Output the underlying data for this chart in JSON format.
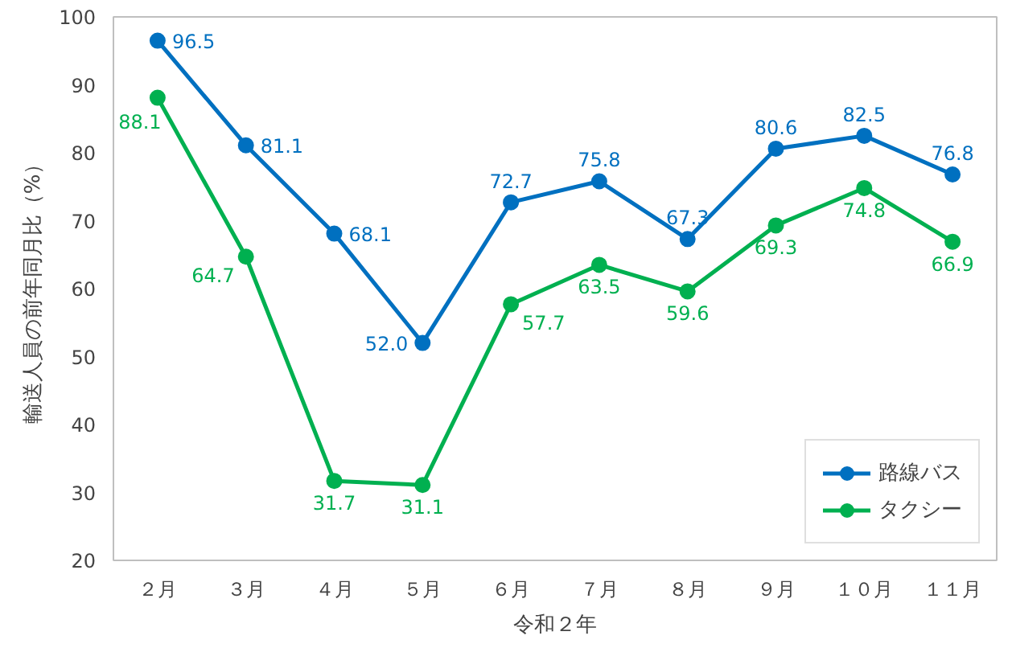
{
  "chart_data": {
    "type": "line",
    "xlabel": "令和２年",
    "ylabel": "輸送人員の前年同月比（%）",
    "categories": [
      "２月",
      "３月",
      "４月",
      "５月",
      "６月",
      "７月",
      "８月",
      "９月",
      "１０月",
      "１１月"
    ],
    "series": [
      {
        "name": "路線バス",
        "color": "#0070c0",
        "values": [
          96.5,
          81.1,
          68.1,
          52.0,
          72.7,
          75.8,
          67.3,
          80.6,
          82.5,
          76.8
        ],
        "value_labels": [
          "96.5",
          "81.1",
          "68.1",
          "52.0",
          "72.7",
          "75.8",
          "67.3",
          "80.6",
          "82.5",
          "76.8"
        ]
      },
      {
        "name": "タクシー",
        "color": "#00b050",
        "values": [
          88.1,
          64.7,
          31.7,
          31.1,
          57.7,
          63.5,
          59.6,
          69.3,
          74.8,
          66.9
        ],
        "value_labels": [
          "88.1",
          "64.7",
          "31.7",
          "31.1",
          "57.7",
          "63.5",
          "59.6",
          "69.3",
          "74.8",
          "66.9"
        ]
      }
    ],
    "ylim": [
      20,
      100
    ],
    "yticks": [
      20,
      30,
      40,
      50,
      60,
      70,
      80,
      90,
      100
    ],
    "grid": false,
    "legend": "bottom right",
    "marker": "circle",
    "line_style": "solid"
  }
}
